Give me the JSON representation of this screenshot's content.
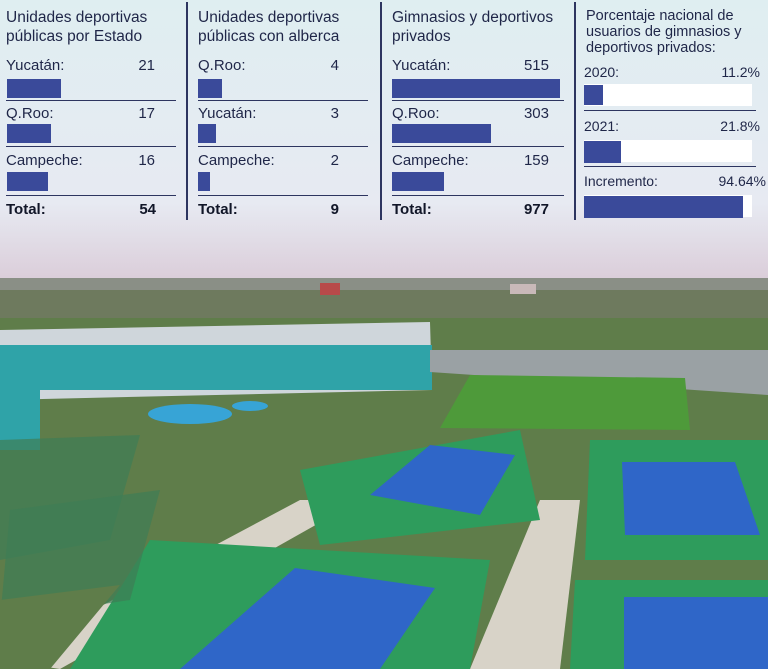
{
  "chart_data": [
    {
      "type": "bar",
      "title": "Unidades deportivas públicas por Estado",
      "categories": [
        "Yucatán:",
        "Q.Roo:",
        "Campeche:"
      ],
      "values": [
        21,
        17,
        16
      ],
      "total_label": "Total:",
      "total": 54
    },
    {
      "type": "bar",
      "title": "Unidades deportivas públicas con alberca",
      "categories": [
        "Q.Roo:",
        "Yucatán:",
        "Campeche:"
      ],
      "values": [
        4,
        3,
        2
      ],
      "total_label": "Total:",
      "total": 9
    },
    {
      "type": "bar",
      "title": "Gimnasios y deportivos privados",
      "categories": [
        "Yucatán:",
        "Q.Roo:",
        "Campeche:"
      ],
      "values": [
        515,
        303,
        159
      ],
      "total_label": "Total:",
      "total": 977
    },
    {
      "type": "bar",
      "title": "Porcentaje nacional de usuarios de gimnasios y deportivos privados:",
      "categories": [
        "2020:",
        "2021:",
        "Incremento:"
      ],
      "values": [
        11.2,
        21.8,
        94.64
      ],
      "value_labels": [
        "11.2%",
        "21.8%",
        "94.64%"
      ],
      "unit": "%"
    }
  ],
  "colors": {
    "bar": "#3a4a9a",
    "text": "#1f2648",
    "panel_bg": "#dfeef1",
    "track": "#ffffff"
  }
}
